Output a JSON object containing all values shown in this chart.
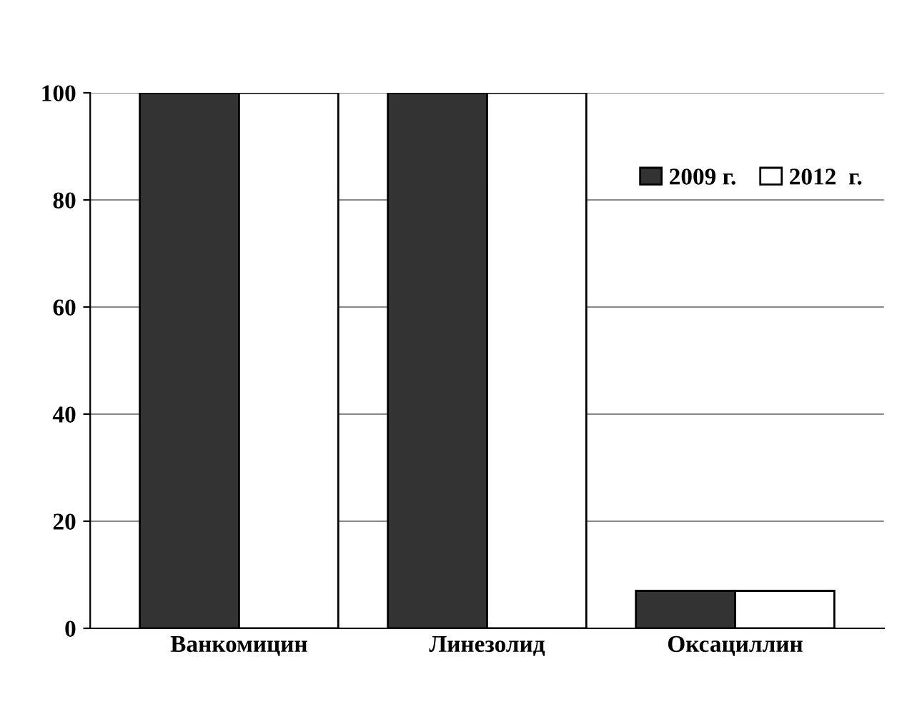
{
  "chart_data": {
    "type": "bar",
    "categories": [
      "Ванкомицин",
      "Линезолид",
      "Оксациллин"
    ],
    "series": [
      {
        "name": "2009 г.",
        "color": "#333333",
        "values": [
          100,
          100,
          7
        ]
      },
      {
        "name": "2012  г.",
        "color": "#ffffff",
        "values": [
          100,
          100,
          7
        ]
      }
    ],
    "ylim": [
      0,
      100
    ],
    "yticks": [
      0,
      20,
      40,
      60,
      80,
      100
    ],
    "grid": "y",
    "legend": "top right"
  }
}
